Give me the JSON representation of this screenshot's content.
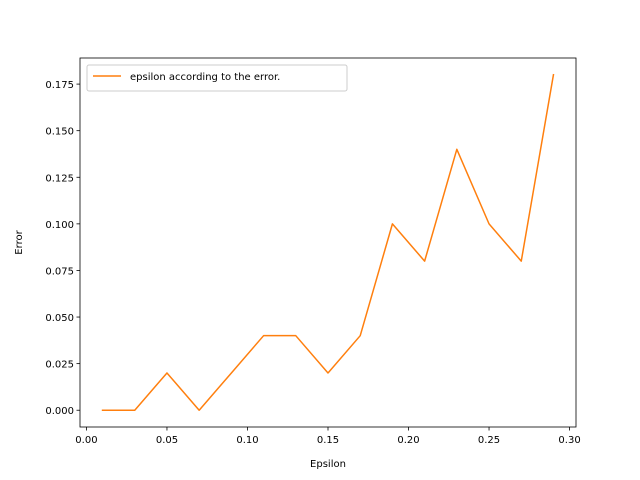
{
  "chart_data": {
    "type": "line",
    "xlabel": "Epsilon",
    "ylabel": "Error",
    "xlim": [
      -0.004,
      0.304
    ],
    "ylim": [
      -0.009,
      0.189
    ],
    "xticks": [
      0.0,
      0.05,
      0.1,
      0.15,
      0.2,
      0.25,
      0.3
    ],
    "xtick_labels": [
      "0.00",
      "0.05",
      "0.10",
      "0.15",
      "0.20",
      "0.25",
      "0.30"
    ],
    "yticks": [
      0.0,
      0.025,
      0.05,
      0.075,
      0.1,
      0.125,
      0.15,
      0.175
    ],
    "ytick_labels": [
      "0.000",
      "0.025",
      "0.050",
      "0.075",
      "0.100",
      "0.125",
      "0.150",
      "0.175"
    ],
    "grid": false,
    "legend_position": "top-left",
    "series": [
      {
        "name": "epsilon according to the error.",
        "color": "#ff7f0e",
        "x": [
          0.01,
          0.03,
          0.05,
          0.07,
          0.09,
          0.11,
          0.13,
          0.15,
          0.17,
          0.19,
          0.21,
          0.23,
          0.25,
          0.27,
          0.29
        ],
        "y": [
          0.0,
          0.0,
          0.02,
          0.0,
          0.02,
          0.04,
          0.04,
          0.02,
          0.04,
          0.1,
          0.08,
          0.14,
          0.1,
          0.08,
          0.18
        ]
      }
    ]
  }
}
